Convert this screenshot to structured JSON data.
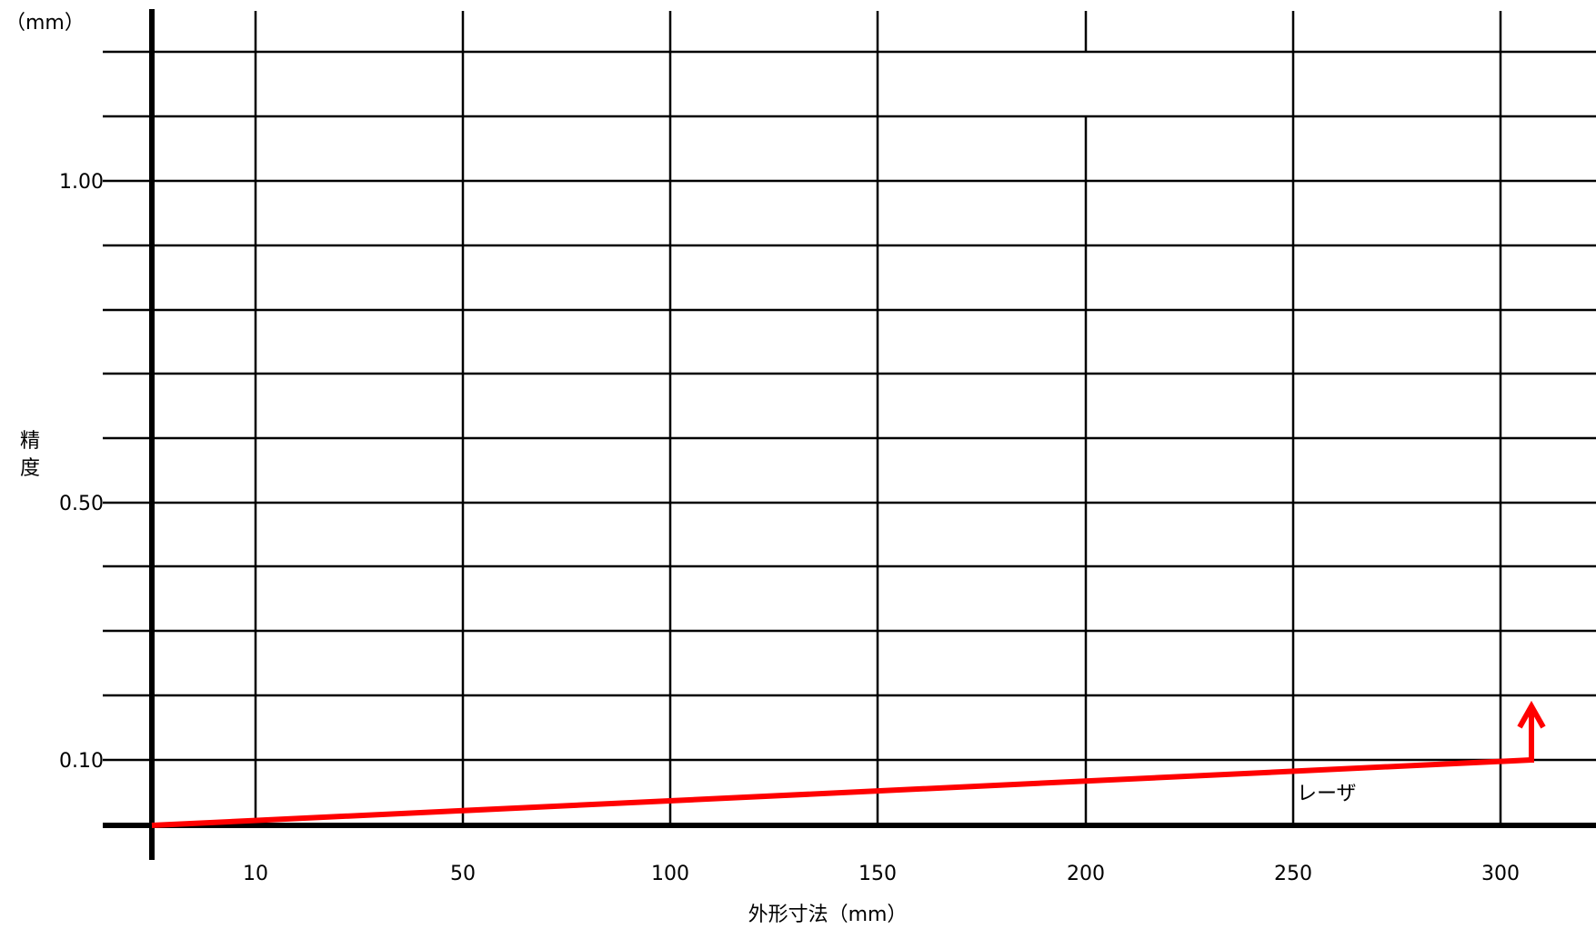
{
  "chart_data": {
    "type": "line",
    "title": "",
    "xlabel": "外形寸法（mm）",
    "ylabel": "精度",
    "y_unit": "（mm）",
    "x_ticks": [
      10,
      50,
      100,
      150,
      200,
      250,
      300
    ],
    "y_ticks": [
      "1.00",
      "0.50",
      "0.10"
    ],
    "grid": true,
    "series": [
      {
        "name": "レーザ",
        "points": [
          {
            "x": 0,
            "y": 0.0
          },
          {
            "x": 300,
            "y": 0.1
          }
        ],
        "extends_beyond_range": true
      }
    ],
    "colors": {
      "series": "#ff0000",
      "grid": "#000000",
      "axis": "#000000"
    }
  }
}
